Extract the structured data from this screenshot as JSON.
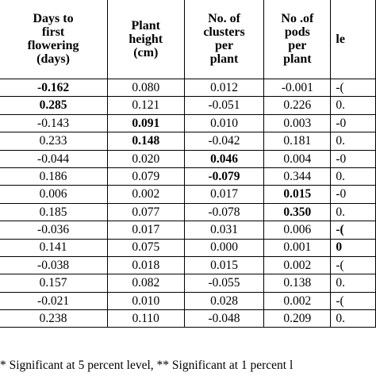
{
  "headers": [
    "",
    "Days to first flowering (days)",
    "Plant height (cm)",
    "No. of clusters per plant",
    "No .of pods per plant",
    "le"
  ],
  "header_lines": [
    [],
    [
      "Days to",
      "first",
      "flowering",
      "(days)"
    ],
    [
      "Plant",
      "height",
      "(cm)"
    ],
    [
      "No. of",
      "clusters",
      "per",
      "plant"
    ],
    [
      "No .of",
      "pods",
      "per",
      "plant"
    ],
    [
      "",
      "le",
      ""
    ]
  ],
  "rows": [
    [
      "",
      "-0.162",
      "0.080",
      "0.012",
      "-0.001",
      "-("
    ],
    [
      "",
      "0.285",
      "0.121",
      "-0.051",
      "0.226",
      "0."
    ],
    [
      "",
      "-0.143",
      "0.091",
      "0.010",
      "0.003",
      "-0"
    ],
    [
      "",
      "0.233",
      "0.148",
      "-0.042",
      "0.181",
      "0."
    ],
    [
      "",
      "-0.044",
      "0.020",
      "0.046",
      "0.004",
      "-0"
    ],
    [
      "",
      "0.186",
      "0.079",
      "-0.079",
      "0.344",
      "0."
    ],
    [
      "",
      "0.006",
      "0.002",
      "0.017",
      "0.015",
      "-0"
    ],
    [
      "",
      "0.185",
      "0.077",
      "-0.078",
      "0.350",
      "0."
    ],
    [
      "",
      "-0.036",
      "0.017",
      "0.031",
      "0.006",
      "-("
    ],
    [
      "",
      "0.141",
      "0.075",
      "0.000",
      "0.001",
      "0"
    ],
    [
      "",
      "-0.038",
      "0.018",
      "0.015",
      "0.002",
      "-("
    ],
    [
      "",
      "0.157",
      "0.082",
      "-0.055",
      "0.138",
      "0."
    ],
    [
      "",
      "-0.021",
      "0.010",
      "0.028",
      "0.002",
      "-("
    ],
    [
      "",
      "0.238",
      "0.110",
      "-0.048",
      "0.209",
      "0."
    ]
  ],
  "bold_cells": [
    [
      0,
      1
    ],
    [
      1,
      1
    ],
    [
      2,
      2
    ],
    [
      3,
      2
    ],
    [
      4,
      3
    ],
    [
      5,
      3
    ],
    [
      6,
      4
    ],
    [
      7,
      4
    ],
    [
      8,
      5
    ],
    [
      9,
      5
    ]
  ],
  "footnote": "*  Significant at 5 percent level, **  Significant at 1 percent l"
}
